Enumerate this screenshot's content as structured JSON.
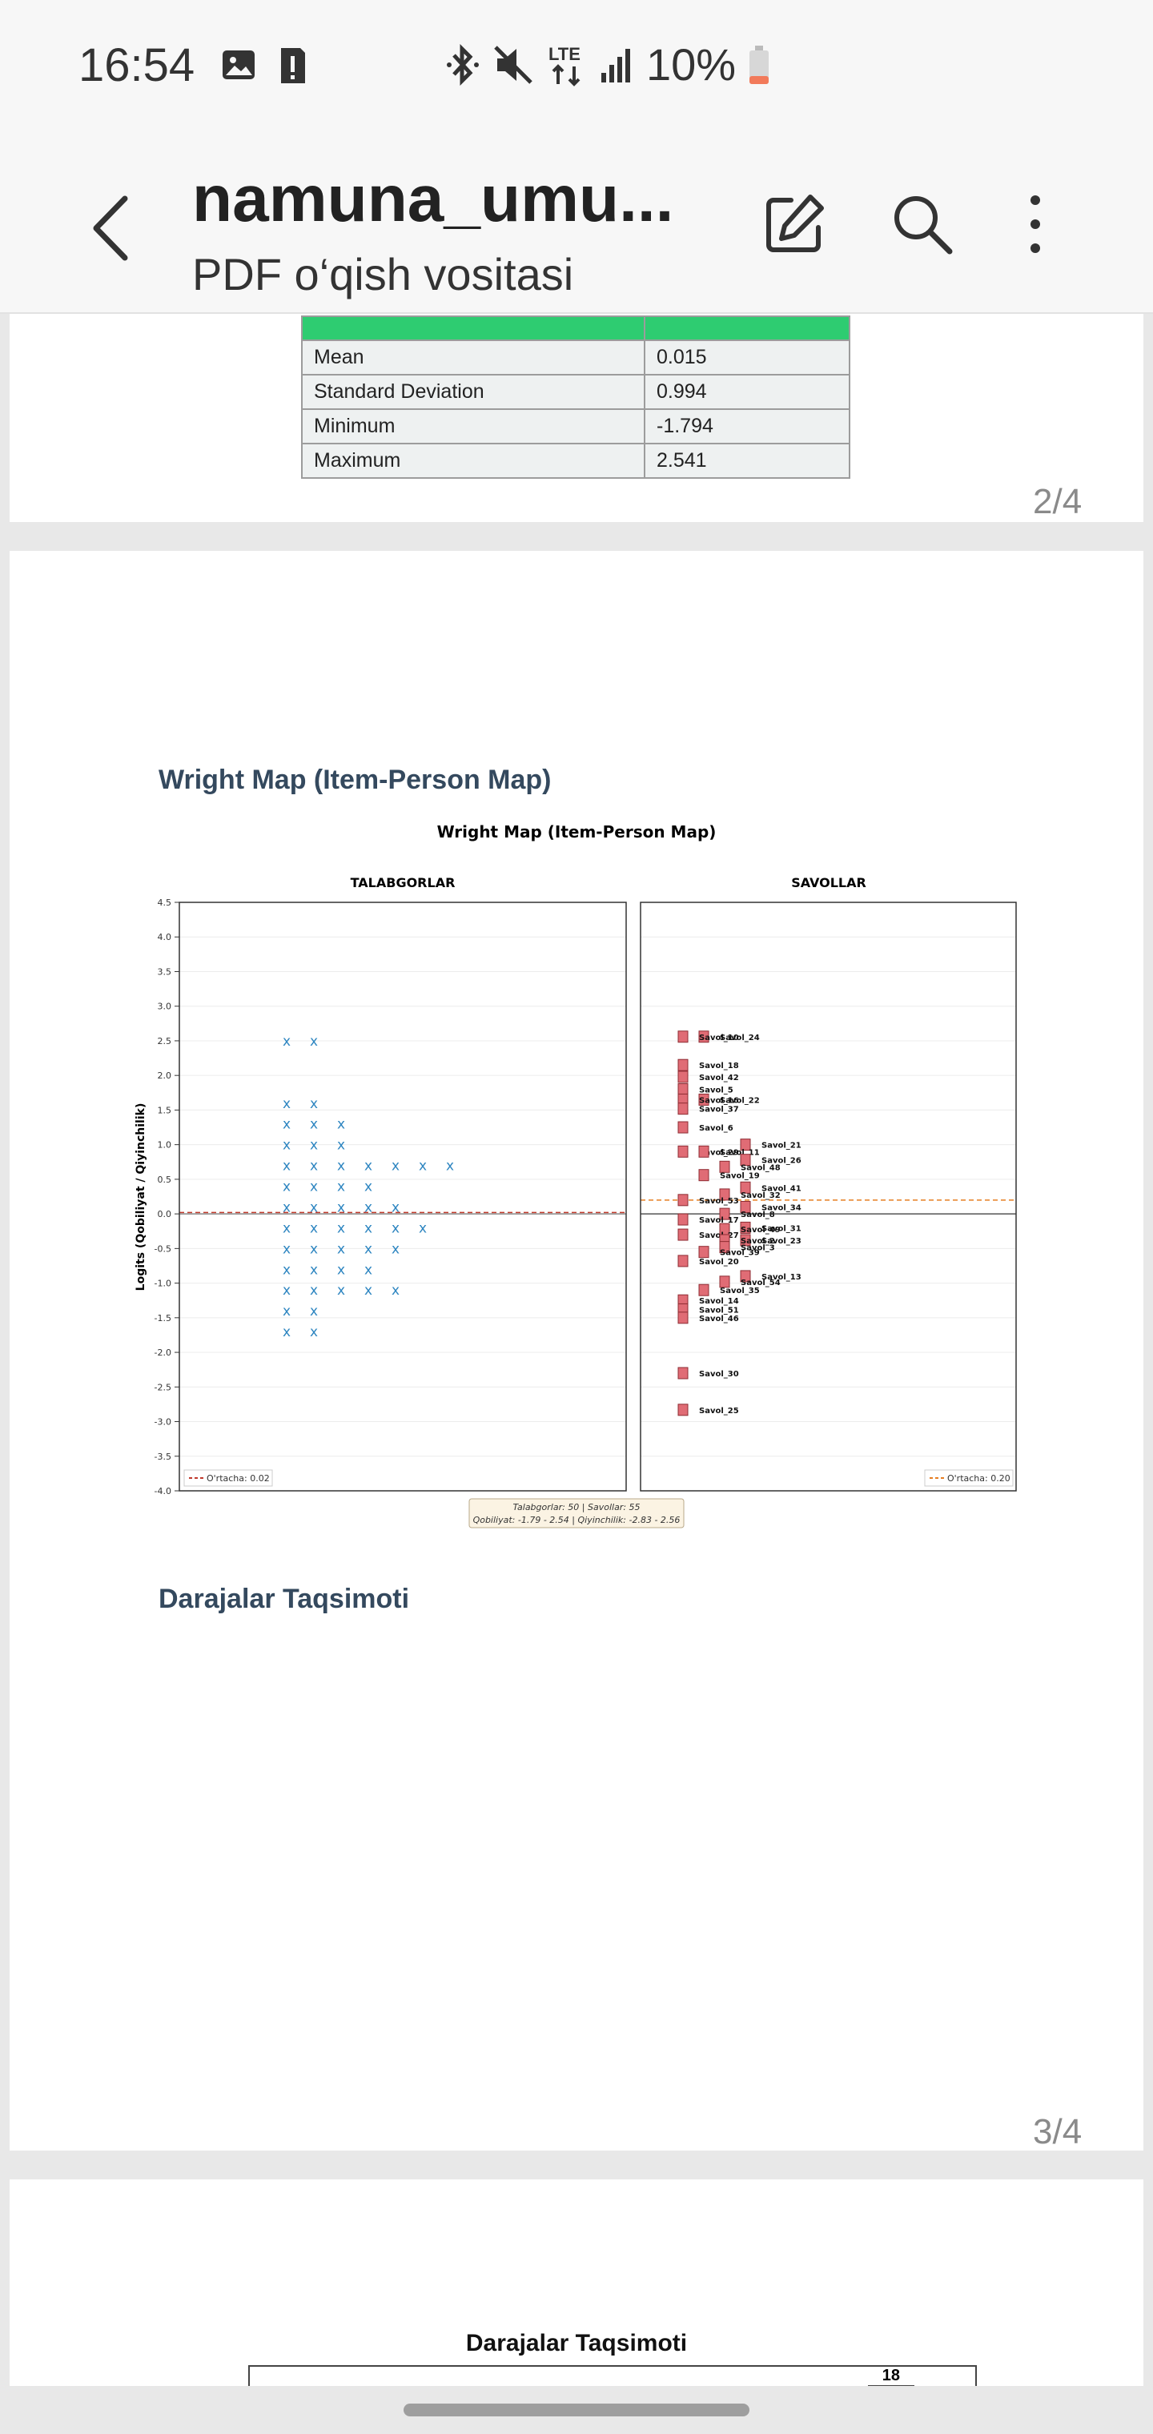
{
  "status_bar": {
    "time": "16:54",
    "battery": "10%",
    "network": "LTE"
  },
  "app_bar": {
    "title": "namuna_umu...",
    "subtitle": "PDF o‘qish vositasi"
  },
  "stats_table": {
    "rows": [
      {
        "label": "Mean",
        "value": "0.015"
      },
      {
        "label": "Standard Deviation",
        "value": "0.994"
      },
      {
        "label": "Minimum",
        "value": "-1.794"
      },
      {
        "label": "Maximum",
        "value": "2.541"
      }
    ]
  },
  "page_numbers": {
    "page2": "2/4",
    "page3": "3/4"
  },
  "sections": {
    "wright_heading": "Wright Map (Item-Person Map)",
    "levels_heading": "Darajalar Taqsimoti",
    "levels_chart_title": "Darajalar Taqsimoti",
    "levels_table_value": "18"
  },
  "chart_data": {
    "type": "scatter",
    "title": "Wright Map (Item-Person Map)",
    "ylabel": "Logits (Qobiliyat / Qiyinchilik)",
    "ylim": [
      -4.0,
      4.5
    ],
    "yticks": [
      4.5,
      4.0,
      3.5,
      3.0,
      2.5,
      2.0,
      1.5,
      1.0,
      0.5,
      0.0,
      -0.5,
      -1.0,
      -1.5,
      -2.0,
      -2.5,
      -3.0,
      -3.5,
      -4.0
    ],
    "left_panel": {
      "title": "TALABGORLAR",
      "mean_label": "O'rtacha: 0.02",
      "mean": 0.02,
      "person_rows": [
        {
          "y": 2.5,
          "count": 2
        },
        {
          "y": 1.6,
          "count": 2
        },
        {
          "y": 1.3,
          "count": 3
        },
        {
          "y": 1.0,
          "count": 3
        },
        {
          "y": 0.7,
          "count": 7
        },
        {
          "y": 0.4,
          "count": 4
        },
        {
          "y": 0.1,
          "count": 5
        },
        {
          "y": -0.2,
          "count": 6
        },
        {
          "y": -0.5,
          "count": 5
        },
        {
          "y": -0.8,
          "count": 4
        },
        {
          "y": -1.1,
          "count": 5
        },
        {
          "y": -1.4,
          "count": 2
        },
        {
          "y": -1.7,
          "count": 2
        }
      ]
    },
    "right_panel": {
      "title": "SAVOLLAR",
      "mean_label": "O'rtacha: 0.20",
      "mean": 0.2,
      "items": [
        {
          "name": "Savol_24",
          "y": 2.56,
          "col": 1
        },
        {
          "name": "Savol_10",
          "y": 2.56,
          "col": 0
        },
        {
          "name": "Savol_18",
          "y": 2.15,
          "col": 0
        },
        {
          "name": "Savol_42",
          "y": 1.98,
          "col": 0
        },
        {
          "name": "Savol_5",
          "y": 1.8,
          "col": 0
        },
        {
          "name": "Savol_22",
          "y": 1.65,
          "col": 1
        },
        {
          "name": "Savol_16",
          "y": 1.65,
          "col": 0
        },
        {
          "name": "Savol_37",
          "y": 1.52,
          "col": 0
        },
        {
          "name": "Savol_6",
          "y": 1.25,
          "col": 0
        },
        {
          "name": "Savol_21",
          "y": 1.0,
          "col": 3
        },
        {
          "name": "Savol_29",
          "y": 0.9,
          "col": 0
        },
        {
          "name": "Savol_11",
          "y": 0.9,
          "col": 1
        },
        {
          "name": "Savol_26",
          "y": 0.78,
          "col": 3
        },
        {
          "name": "Savol_48",
          "y": 0.68,
          "col": 2
        },
        {
          "name": "Savol_19",
          "y": 0.56,
          "col": 1
        },
        {
          "name": "Savol_41",
          "y": 0.38,
          "col": 3
        },
        {
          "name": "Savol_32",
          "y": 0.28,
          "col": 2
        },
        {
          "name": "Savol_53",
          "y": 0.2,
          "col": 0
        },
        {
          "name": "Savol_34",
          "y": 0.1,
          "col": 3
        },
        {
          "name": "Savol_8",
          "y": 0.0,
          "col": 2
        },
        {
          "name": "Savol_17",
          "y": -0.08,
          "col": 0
        },
        {
          "name": "Savol_31",
          "y": -0.2,
          "col": 3
        },
        {
          "name": "Savol_49",
          "y": -0.22,
          "col": 2
        },
        {
          "name": "Savol_27",
          "y": -0.3,
          "col": 0
        },
        {
          "name": "Savol_23",
          "y": -0.38,
          "col": 3
        },
        {
          "name": "Savol_2",
          "y": -0.38,
          "col": 2
        },
        {
          "name": "Savol_3",
          "y": -0.48,
          "col": 2
        },
        {
          "name": "Savol_39",
          "y": -0.55,
          "col": 1
        },
        {
          "name": "Savol_20",
          "y": -0.68,
          "col": 0
        },
        {
          "name": "Savol_13",
          "y": -0.9,
          "col": 3
        },
        {
          "name": "Savol_54",
          "y": -0.98,
          "col": 2
        },
        {
          "name": "Savol_35",
          "y": -1.1,
          "col": 1
        },
        {
          "name": "Savol_14",
          "y": -1.25,
          "col": 0
        },
        {
          "name": "Savol_51",
          "y": -1.38,
          "col": 0
        },
        {
          "name": "Savol_46",
          "y": -1.5,
          "col": 0
        },
        {
          "name": "Savol_30",
          "y": -2.3,
          "col": 0
        },
        {
          "name": "Savol_25",
          "y": -2.83,
          "col": 0
        }
      ]
    },
    "info_box": {
      "line1": "Talabgorlar: 50 | Savollar: 55",
      "line2": "Qobiliyat: -1.79 - 2.54 | Qiyinchilik: -2.83 - 2.56"
    }
  }
}
